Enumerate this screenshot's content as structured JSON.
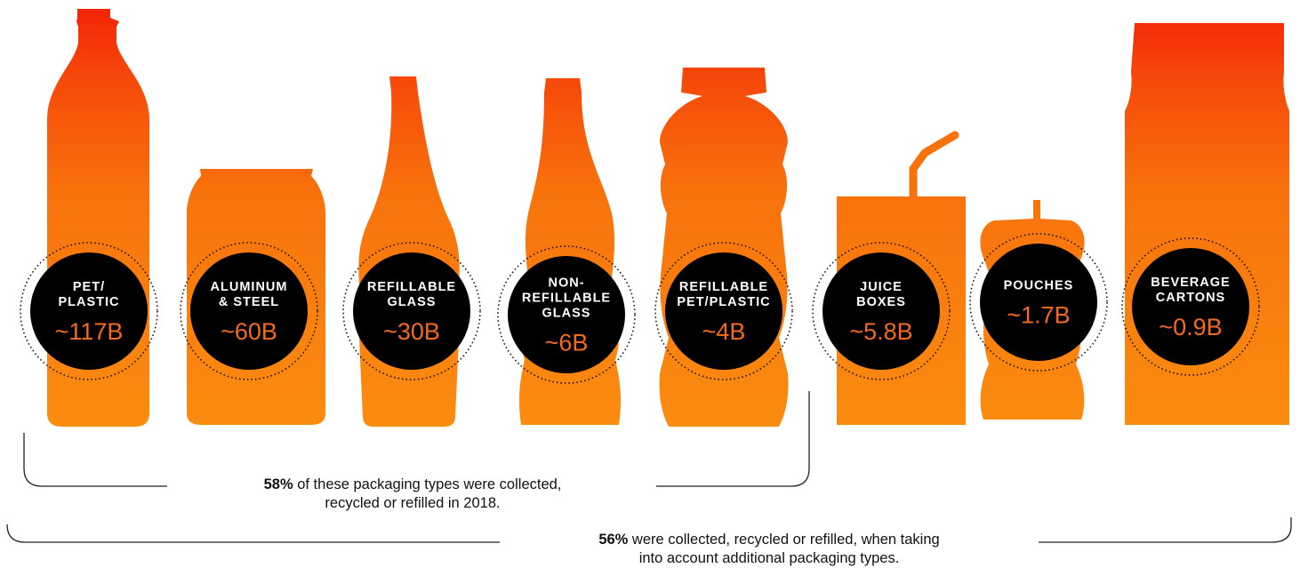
{
  "items": [
    {
      "line1": "PET/",
      "line2": "PLASTIC",
      "line3": "",
      "value": "~117B"
    },
    {
      "line1": "ALUMINUM",
      "line2": "& STEEL",
      "line3": "",
      "value": "~60B"
    },
    {
      "line1": "REFILLABLE",
      "line2": "GLASS",
      "line3": "",
      "value": "~30B"
    },
    {
      "line1": "NON-",
      "line2": "REFILLABLE",
      "line3": "GLASS",
      "value": "~6B"
    },
    {
      "line1": "REFILLABLE",
      "line2": "PET/PLASTIC",
      "line3": "",
      "value": "~4B"
    },
    {
      "line1": "JUICE",
      "line2": "BOXES",
      "line3": "",
      "value": "~5.8B"
    },
    {
      "line1": "POUCHES",
      "line2": "",
      "line3": "",
      "value": "~1.7B"
    },
    {
      "line1": "BEVERAGE",
      "line2": "CARTONS",
      "line3": "",
      "value": "~0.9B"
    }
  ],
  "notes": {
    "first": {
      "pct": "58%",
      "text_line1": " of these packaging types were collected,",
      "text_line2": "recycled or refilled in 2018."
    },
    "second": {
      "pct": "56%",
      "text_line1": " were collected, recycled or refilled, when taking",
      "text_line2": "into account additional packaging types."
    }
  },
  "colors": {
    "gradient_top": "#f41f06",
    "gradient_mid": "#f7620a",
    "gradient_bottom": "#fa8c10",
    "circle": "#000000",
    "value_text": "#f26a1b"
  }
}
